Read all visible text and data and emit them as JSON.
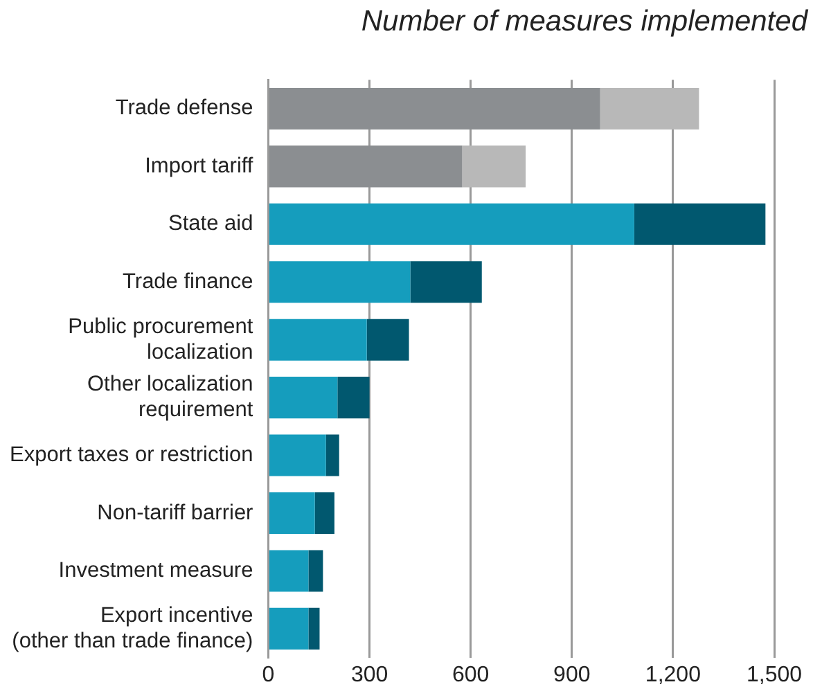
{
  "chart_data": {
    "type": "bar",
    "orientation": "horizontal",
    "stacked": true,
    "title": "Number of measures implemented",
    "categories": [
      "Trade defense",
      "Import tariff",
      "State aid",
      "Trade finance",
      "Public procurement\nlocalization",
      "Other localization\nrequirement",
      "Export taxes or restriction",
      "Non-tariff barrier",
      "Investment measure",
      "Export incentive\n(other than trade finance)"
    ],
    "series": [
      {
        "colors": [
          "#8b8e91",
          "#8b8e91",
          "#159dbd",
          "#159dbd",
          "#159dbd",
          "#159dbd",
          "#159dbd",
          "#159dbd",
          "#159dbd",
          "#159dbd"
        ],
        "values": [
          984,
          575,
          1085,
          421,
          292,
          205,
          171,
          138,
          119,
          119
        ]
      },
      {
        "colors": [
          "#b8b8b8",
          "#b8b8b8",
          "#01586f",
          "#01586f",
          "#01586f",
          "#01586f",
          "#01586f",
          "#01586f",
          "#01586f",
          "#01586f"
        ],
        "values": [
          293,
          188,
          389,
          212,
          125,
          95,
          39,
          58,
          43,
          33
        ]
      }
    ],
    "xlim": [
      0,
      1500
    ],
    "xticks": [
      0,
      300,
      600,
      900,
      {
        "value": 1200,
        "label": "1,200"
      },
      {
        "value": 1500,
        "label": "1,500"
      }
    ],
    "grid": "x",
    "legend": false
  }
}
